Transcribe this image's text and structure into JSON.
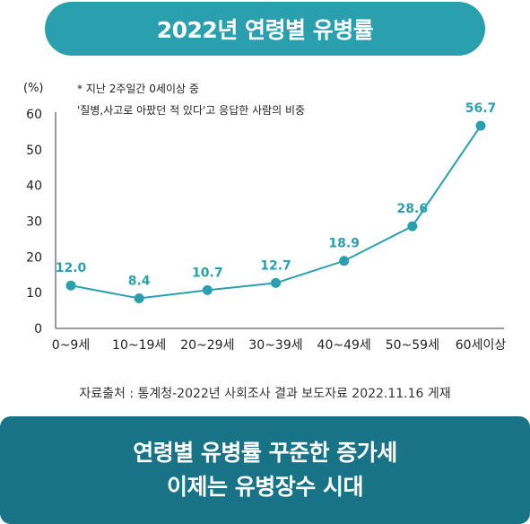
{
  "header": {
    "title": "2022년 연령별 유병률"
  },
  "chart_data": {
    "type": "line",
    "unit": "(%)",
    "notes": [
      "* 지난 2주일간 0세이상 중",
      "'질병,사고로 아팠던 적 있다'고  응답한 사람의 비중"
    ],
    "categories": [
      "0~9세",
      "10~19세",
      "20~29세",
      "30~39세",
      "40~49세",
      "50~59세",
      "60세이상"
    ],
    "values": [
      12.0,
      8.4,
      10.7,
      12.7,
      18.9,
      28.6,
      56.7
    ],
    "value_labels": [
      "12.0",
      "8.4",
      "10.7",
      "12.7",
      "18.9",
      "28.6",
      "56.7"
    ],
    "y_ticks": [
      0,
      10,
      20,
      30,
      40,
      50,
      60
    ],
    "ylim": [
      0,
      60
    ],
    "line_color": "#2a9fae",
    "grid": false
  },
  "source": {
    "text": "자료출처 :  통계청-2022년 사회조사 결과 보도자료 2022.11.16 게재"
  },
  "footer": {
    "line1": "연령별 유병률 꾸준한 증가세",
    "line2": "이제는 유병장수 시대"
  },
  "colors": {
    "title_bg": "#2a9fae",
    "footer_bg": "#187386",
    "accent": "#2a9fae"
  }
}
